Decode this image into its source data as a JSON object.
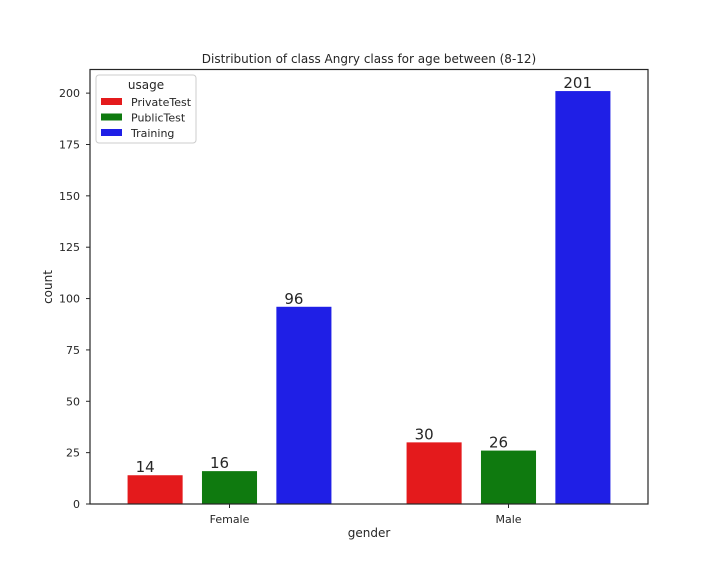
{
  "chart_data": {
    "type": "bar",
    "title": "Distribution of class Angry class for age between (8-12)",
    "xlabel": "gender",
    "ylabel": "count",
    "categories": [
      "Female",
      "Male"
    ],
    "series": [
      {
        "name": "PrivateTest",
        "color": "#e41a1c",
        "values": [
          14,
          30
        ]
      },
      {
        "name": "PublicTest",
        "color": "#0f7a0f",
        "values": [
          16,
          26
        ]
      },
      {
        "name": "Training",
        "color": "#1f1fe6",
        "values": [
          96,
          201
        ]
      }
    ],
    "ylim": [
      0,
      211.5
    ],
    "yticks": [
      0,
      25,
      50,
      75,
      100,
      125,
      150,
      175,
      200
    ],
    "legend": {
      "title": "usage",
      "position": "top-left"
    },
    "grid": false
  }
}
